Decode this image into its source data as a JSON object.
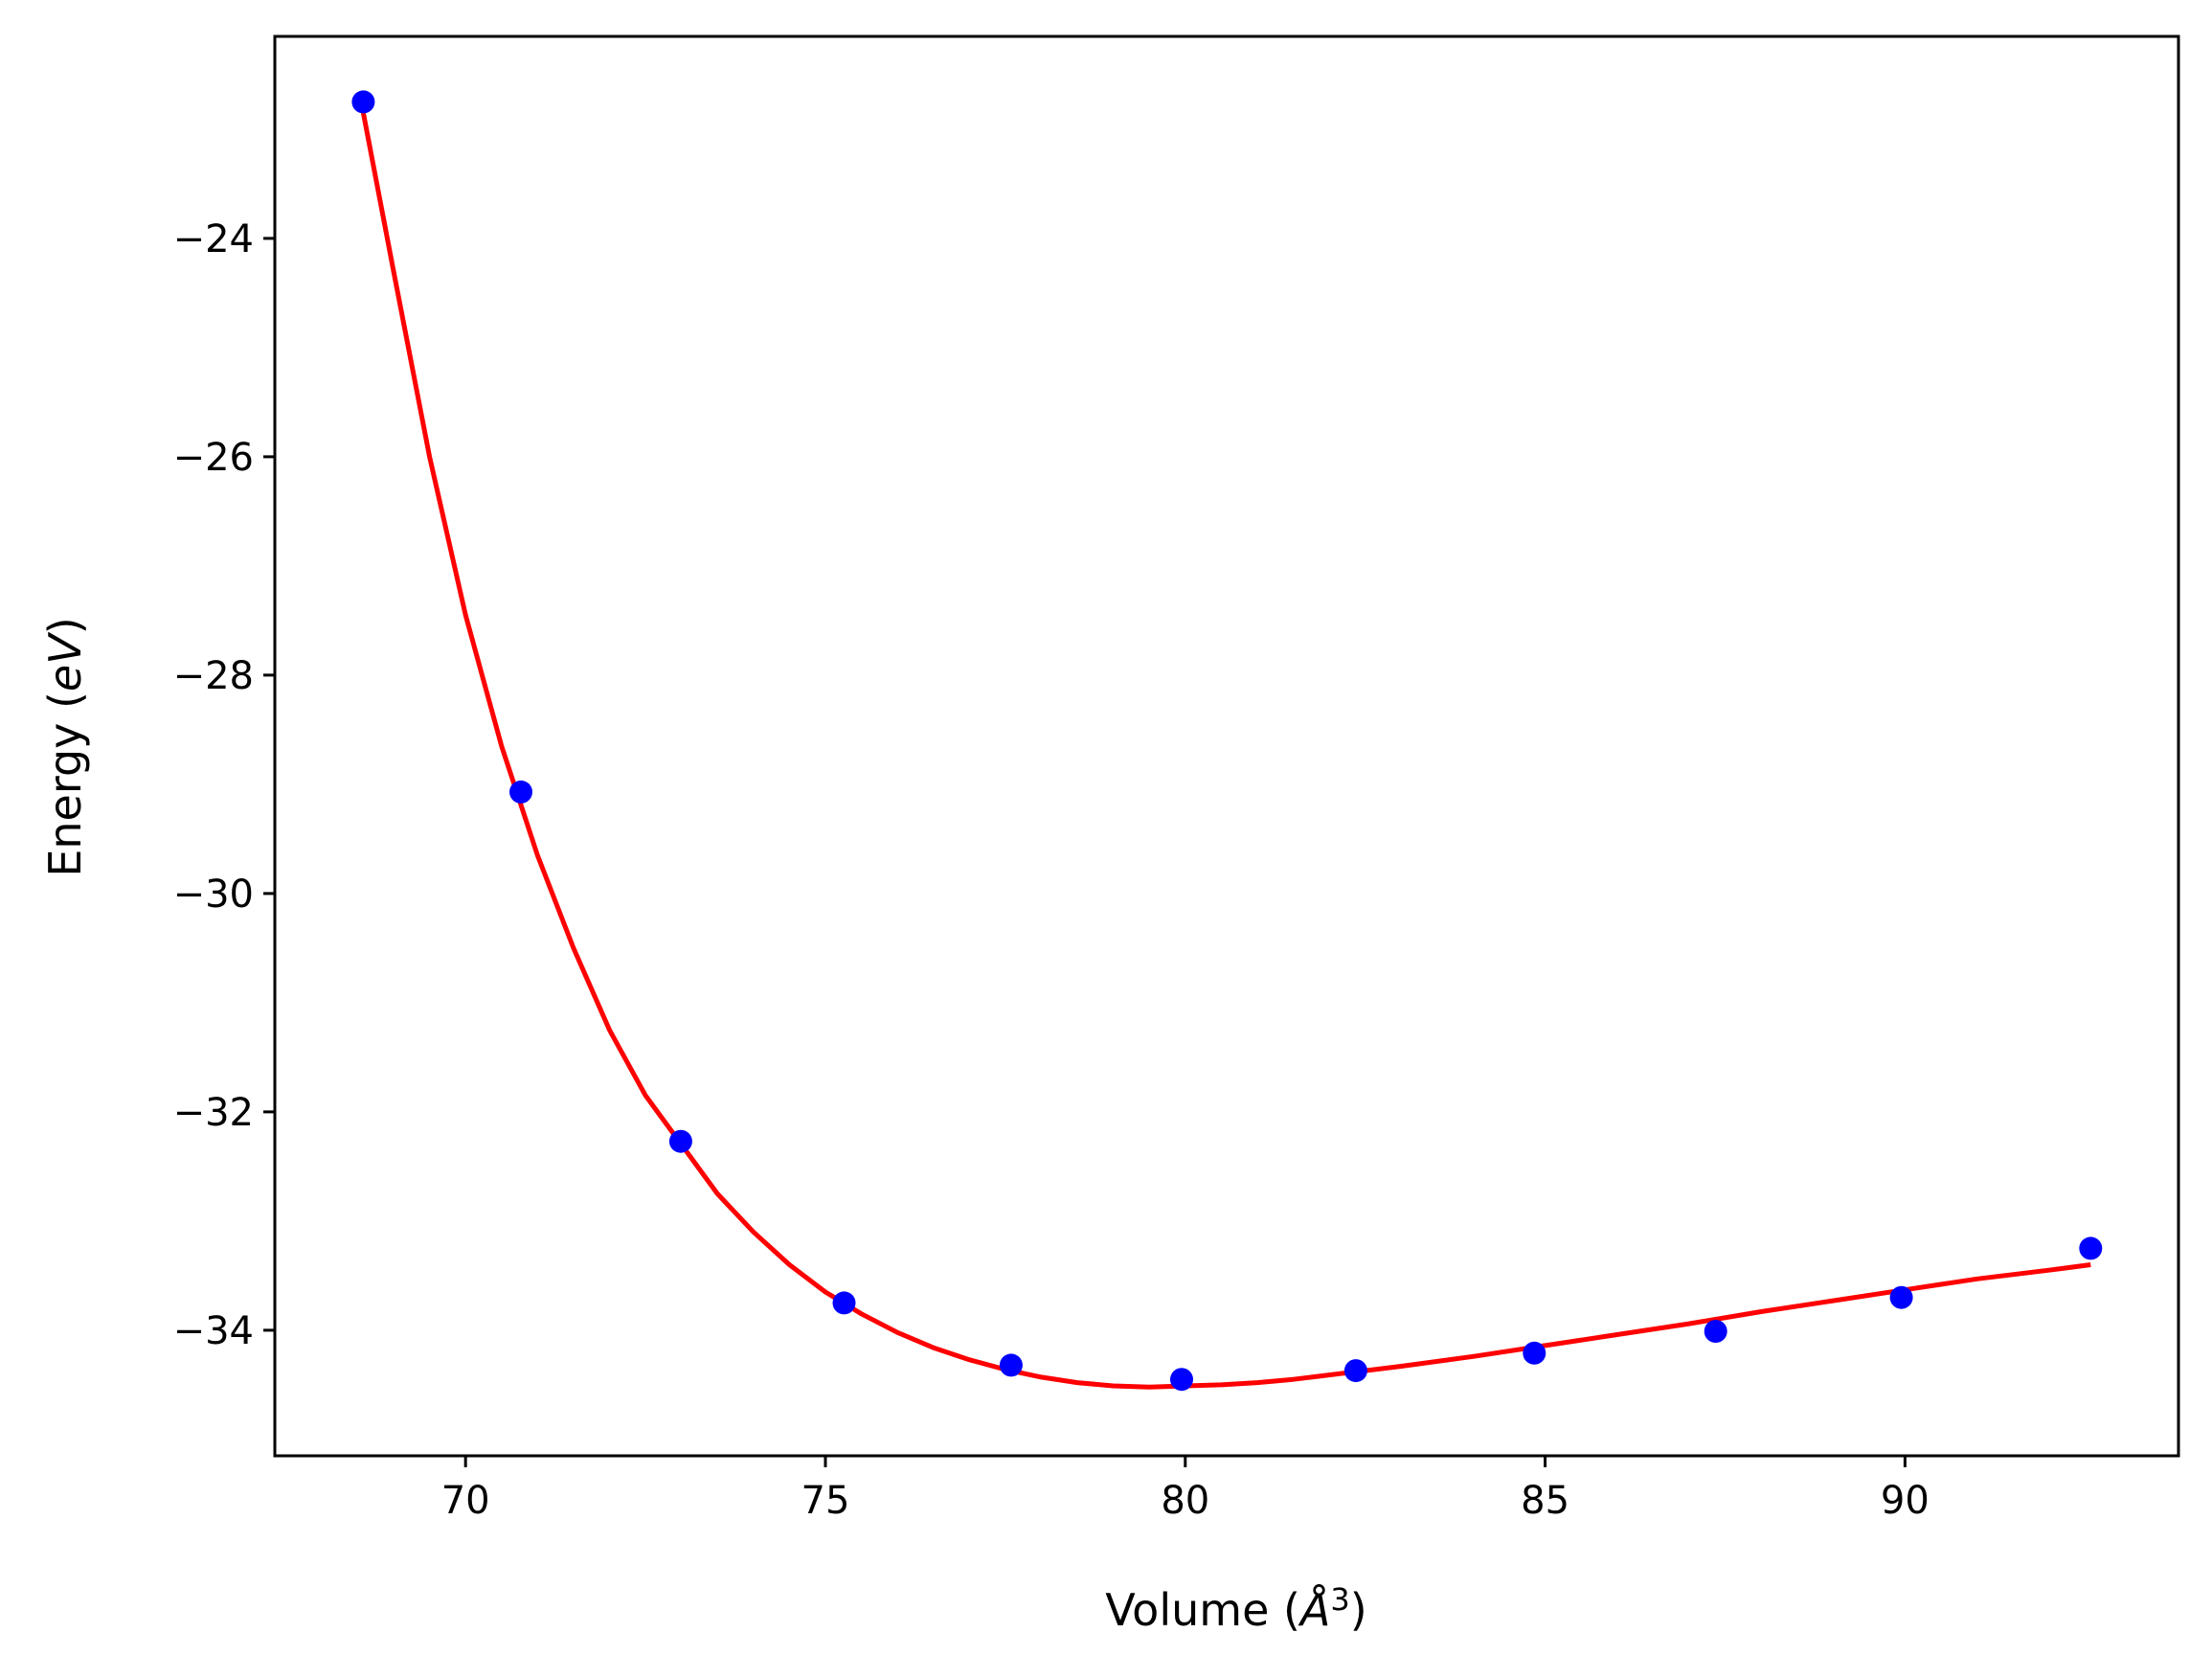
{
  "chart_data": {
    "type": "scatter",
    "title": "",
    "xlabel_prefix": "Volume (",
    "xlabel_unit": "Å",
    "xlabel_exp": "3",
    "xlabel_suffix": ")",
    "ylabel_prefix": "Energy (",
    "ylabel_unit": "eV",
    "ylabel_suffix": ")",
    "xlim": [
      67.35,
      93.8
    ],
    "ylim": [
      -35.15,
      -22.15
    ],
    "xticks": [
      70,
      75,
      80,
      85,
      90
    ],
    "xtick_labels": [
      "70",
      "75",
      "80",
      "85",
      "90"
    ],
    "yticks": [
      -24,
      -26,
      -28,
      -30,
      -32,
      -34
    ],
    "ytick_labels": [
      "−24",
      "−26",
      "−28",
      "−30",
      "−32",
      "−34"
    ],
    "grid": false,
    "legend": "none",
    "series": [
      {
        "kind": "points",
        "color": "#0000ff",
        "x": [
          68.58,
          70.77,
          72.99,
          75.26,
          77.58,
          79.95,
          82.37,
          84.85,
          87.37,
          89.95,
          92.58
        ],
        "y": [
          -22.75,
          -29.07,
          -32.27,
          -33.75,
          -34.32,
          -34.45,
          -34.37,
          -34.21,
          -34.01,
          -33.7,
          -33.25
        ]
      },
      {
        "kind": "line",
        "color": "#ff0000",
        "x": [
          68.58,
          69.0,
          69.5,
          70.0,
          70.5,
          71.0,
          71.5,
          72.0,
          72.5,
          73.0,
          73.5,
          74.0,
          74.5,
          75.0,
          75.5,
          76.0,
          76.5,
          77.0,
          77.5,
          78.0,
          78.5,
          79.0,
          79.5,
          80.0,
          80.5,
          81.0,
          81.5,
          82.0,
          82.5,
          83.0,
          84.0,
          85.0,
          86.0,
          87.0,
          88.0,
          89.0,
          90.0,
          91.0,
          92.0,
          92.58
        ],
        "y": [
          -22.85,
          -24.3,
          -26.0,
          -27.45,
          -28.65,
          -29.65,
          -30.5,
          -31.25,
          -31.85,
          -32.3,
          -32.75,
          -33.1,
          -33.4,
          -33.65,
          -33.85,
          -34.02,
          -34.16,
          -34.27,
          -34.36,
          -34.43,
          -34.48,
          -34.51,
          -34.52,
          -34.51,
          -34.5,
          -34.48,
          -34.45,
          -34.41,
          -34.37,
          -34.33,
          -34.24,
          -34.14,
          -34.04,
          -33.94,
          -33.83,
          -33.73,
          -33.63,
          -33.53,
          -33.45,
          -33.4
        ]
      }
    ]
  }
}
